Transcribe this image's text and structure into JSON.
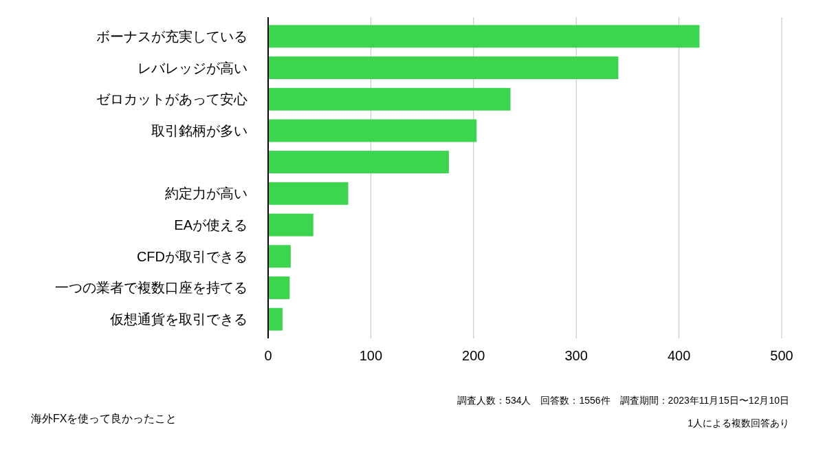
{
  "chart_data": {
    "type": "bar",
    "orientation": "horizontal",
    "title": "海外FXを使って良かったこと",
    "categories": [
      "ボーナスが充実している",
      "レバレッジが高い",
      "ゼロカットがあって安心",
      "取引銘柄が多い",
      null,
      "約定力が高い",
      "EAが使える",
      "CFDが取引できる",
      "一つの業者で複数口座を持てる",
      "仮想通貨を取引できる"
    ],
    "values": [
      420,
      341,
      236,
      203,
      176,
      78,
      44,
      22,
      21,
      14
    ],
    "color": "#3dd44f",
    "xlim": [
      0,
      500
    ],
    "xticks": [
      0,
      100,
      200,
      300,
      400,
      500
    ],
    "grid": "x",
    "annotations": [
      "調査人数：534人　回答数：1556件　調査期間：2023年11月15日〜12月10日",
      "1人による複数回答あり"
    ]
  }
}
